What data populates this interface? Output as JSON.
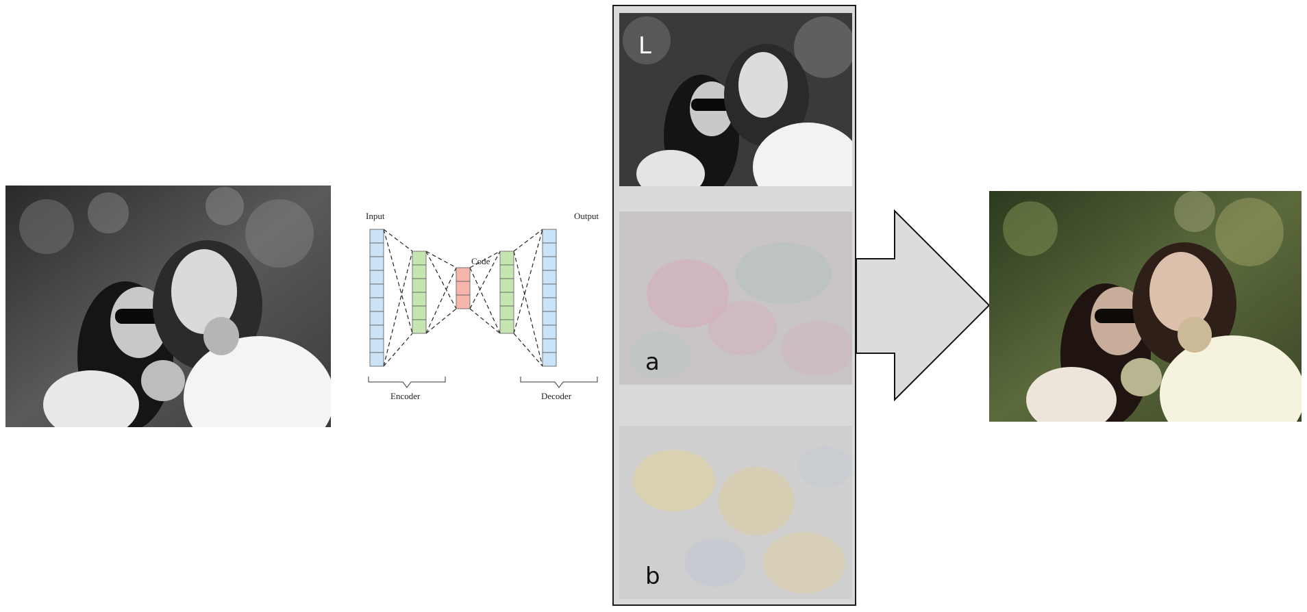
{
  "autoencoder": {
    "input_label": "Input",
    "output_label": "Output",
    "code_label": "Code",
    "encoder_label": "Encoder",
    "decoder_label": "Decoder",
    "colors": {
      "input_output": "#c9e2f5",
      "hidden": "#c6e5b3",
      "code": "#f7b6ab"
    }
  },
  "lab_channels": {
    "l_label": "L",
    "a_label": "a",
    "b_label": "b"
  },
  "colors": {
    "panel_bg": "#d9d9d9",
    "arrow_fill": "#dcdcdc",
    "a_channel_tint": "#c9c2c4",
    "b_channel_tint": "#d2c9b0"
  }
}
